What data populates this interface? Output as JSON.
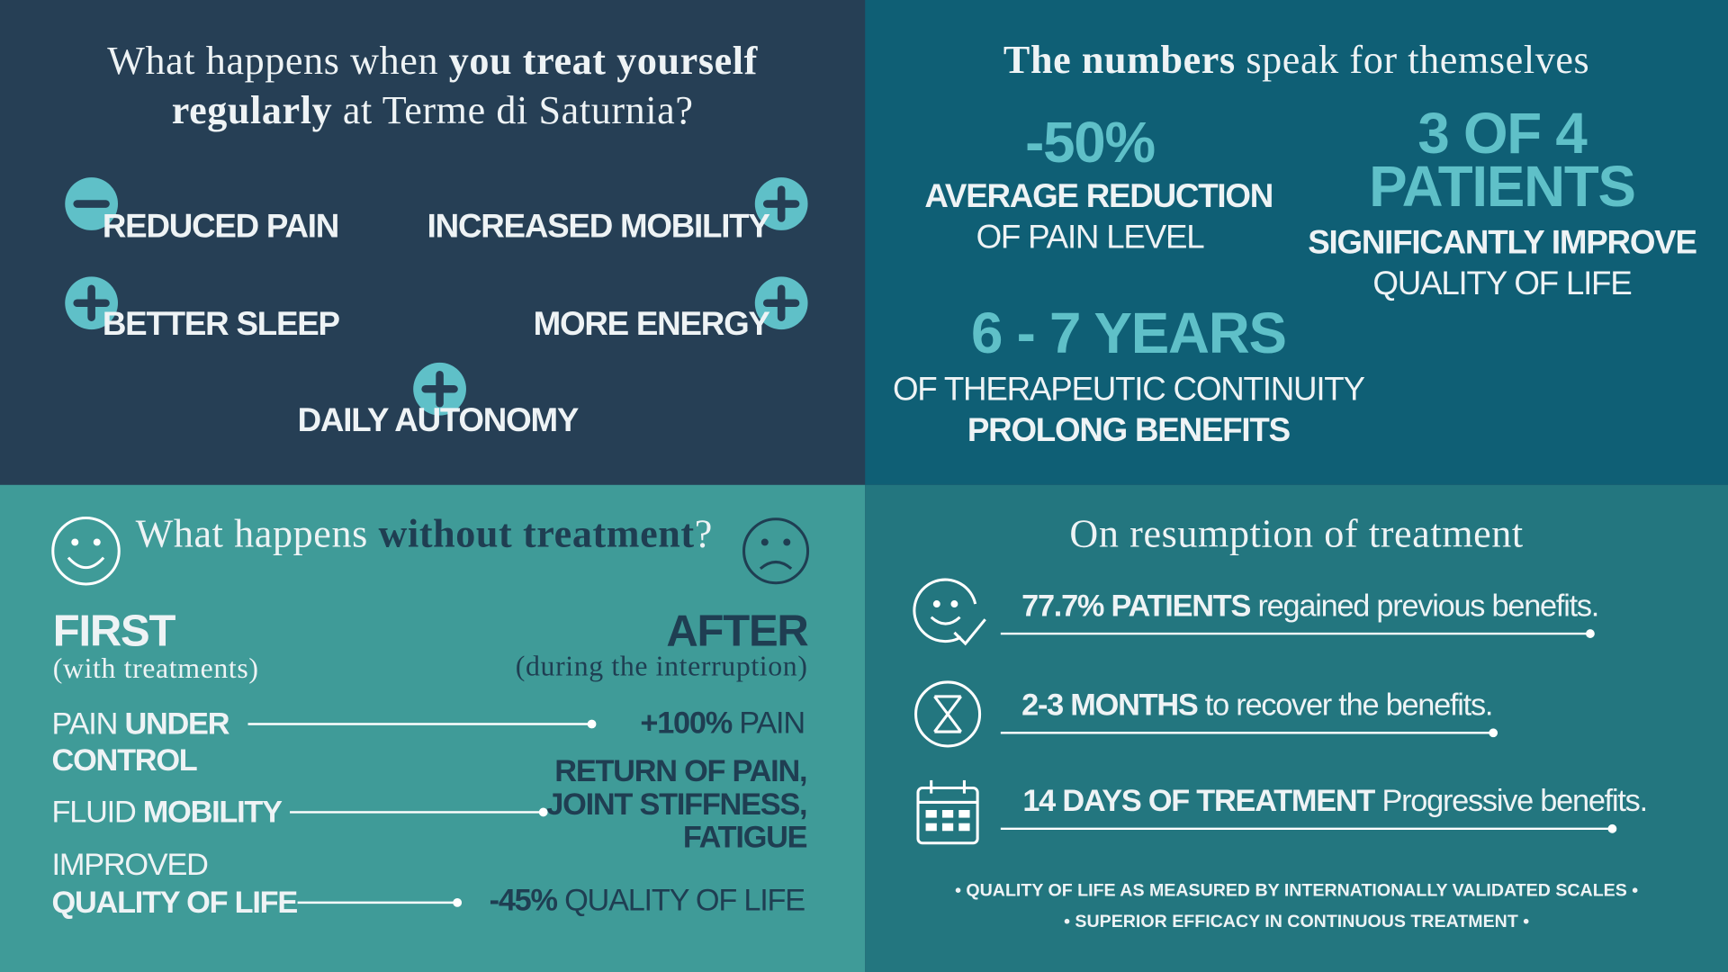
{
  "panel_treat": {
    "title": [
      "What happens when ",
      "you treat yourself",
      "regularly",
      " at Terme di Saturnia?"
    ],
    "benefits": [
      "REDUCED PAIN",
      "INCREASED MOBILITY",
      "BETTER SLEEP",
      "MORE ENERGY",
      "DAILY AUTONOMY"
    ]
  },
  "panel_numbers": {
    "title": [
      "The numbers",
      " speak for themselves"
    ],
    "stats": [
      {
        "value": [
          "-50%"
        ],
        "lines": [
          "AVERAGE REDUCTION",
          "OF PAIN LEVEL"
        ]
      },
      {
        "value": [
          "3 OF 4",
          "PATIENTS"
        ],
        "lines": [
          "SIGNIFICANTLY IMPROVE",
          "QUALITY OF LIFE"
        ]
      },
      {
        "value": [
          "6 - 7 YEARS"
        ],
        "lines": [
          "OF THERAPEUTIC CONTINUITY",
          "PROLONG BENEFITS"
        ]
      }
    ]
  },
  "panel_without": {
    "title": [
      "What happens ",
      "without treatment",
      "?"
    ],
    "first": {
      "label": "FIRST",
      "note": "(with treatments)"
    },
    "after": {
      "label": "AFTER",
      "note": "(during the interruption)"
    },
    "rows": [
      {
        "before": [
          "PAIN ",
          "UNDER",
          "CONTROL"
        ],
        "after": [
          "+100%",
          " PAIN"
        ]
      },
      {
        "before": [
          "FLUID ",
          "MOBILITY"
        ],
        "after": [
          "RETURN OF PAIN,",
          "JOINT STIFFNESS,",
          "FATIGUE"
        ]
      },
      {
        "before": [
          "IMPROVED",
          "QUALITY OF LIFE"
        ],
        "after": [
          "-45%",
          " QUALITY OF LIFE"
        ]
      }
    ]
  },
  "panel_resumption": {
    "title": "On resumption of treatment",
    "items": [
      [
        "77.7% PATIENTS",
        " regained previous benefits."
      ],
      [
        "2-3 MONTHS",
        " to recover the benefits."
      ],
      [
        "14 DAYS OF TREATMENT",
        " Progressive benefits."
      ]
    ],
    "notes": [
      "• QUALITY OF LIFE AS MEASURED BY INTERNATIONALLY VALIDATED SCALES •",
      "• SUPERIOR EFFICACY IN CONTINUOUS TREATMENT •"
    ]
  }
}
